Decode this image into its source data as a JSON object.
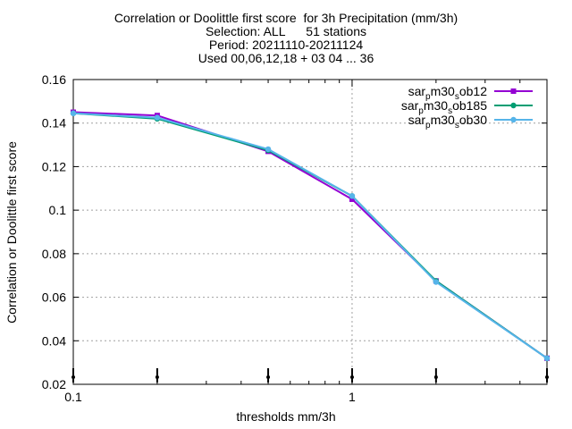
{
  "chart_data": {
    "type": "line",
    "title": [
      "Correlation or Doolittle first score  for 3h Precipitation (mm/3h)",
      "Selection: ALL      51 stations",
      "Period: 20211110-20211124",
      "Used 00,06,12,18 + 03 04 ... 36"
    ],
    "xlabel": "thresholds mm/3h",
    "ylabel": "Correlation or Doolittle first score",
    "x_scale": "log",
    "xlim": [
      0.1,
      5
    ],
    "ylim": [
      0.02,
      0.16
    ],
    "x_ticks": [
      0.1,
      1
    ],
    "x_tick_labels": [
      "0.1",
      "1"
    ],
    "y_ticks": [
      0.02,
      0.04,
      0.06,
      0.08,
      0.1,
      0.12,
      0.14,
      0.16
    ],
    "y_tick_labels": [
      "0.02",
      "0.04",
      "0.06",
      "0.08",
      "0.1",
      "0.12",
      "0.14",
      "0.16"
    ],
    "grid": true,
    "legend_position": "top-right",
    "x": [
      0.1,
      0.2,
      0.5,
      1,
      2,
      5
    ],
    "series": [
      {
        "name_main": "sar",
        "name_sub1": "p",
        "name_mid": "m30",
        "name_sub2": "s",
        "name_end": "ob12",
        "color": "#9400d3",
        "marker": "filled-square",
        "values": [
          0.145,
          0.1435,
          0.127,
          0.105,
          0.0675,
          0.032
        ]
      },
      {
        "name_main": "sar",
        "name_sub1": "p",
        "name_mid": "m30",
        "name_sub2": "s",
        "name_end": "ob185",
        "color": "#009e73",
        "marker": "filled-circle",
        "values": [
          0.1445,
          0.142,
          0.1275,
          0.1065,
          0.0675,
          0.032
        ]
      },
      {
        "name_main": "sar",
        "name_sub1": "p",
        "name_mid": "m30",
        "name_sub2": "s",
        "name_end": "ob30",
        "color": "#56b4e9",
        "marker": "filled-circle",
        "values": [
          0.1445,
          0.1425,
          0.128,
          0.1065,
          0.067,
          0.032
        ]
      }
    ],
    "bottom_markers_x": [
      0.1,
      0.2,
      0.5,
      1,
      2,
      5
    ]
  }
}
